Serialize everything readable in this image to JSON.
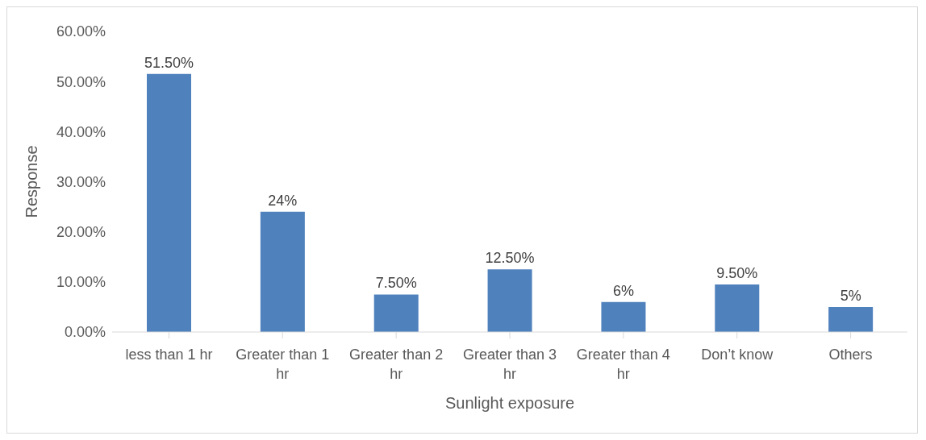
{
  "chart_data": {
    "type": "bar",
    "xlabel": "Sunlight exposure",
    "ylabel": "Response",
    "categories": [
      "less than 1 hr",
      "Greater than 1 hr",
      "Greater than 2 hr",
      "Greater than 3 hr",
      "Greater than 4 hr",
      "Don’t know",
      "Others"
    ],
    "values": [
      51.5,
      24,
      7.5,
      12.5,
      6,
      9.5,
      5
    ],
    "value_labels": [
      "51.50%",
      "24%",
      "7.50%",
      "12.50%",
      "6%",
      "9.50%",
      "5%"
    ],
    "color": "#4f81bd",
    "ylim": [
      0,
      60
    ],
    "yticks": [
      {
        "value": 0,
        "label": "0.00%"
      },
      {
        "value": 10,
        "label": "10.00%"
      },
      {
        "value": 20,
        "label": "20.00%"
      },
      {
        "value": 30,
        "label": "30.00%"
      },
      {
        "value": 40,
        "label": "40.00%"
      },
      {
        "value": 50,
        "label": "50.00%"
      },
      {
        "value": 60,
        "label": "60.00%"
      }
    ],
    "grid": false,
    "legend": false
  }
}
